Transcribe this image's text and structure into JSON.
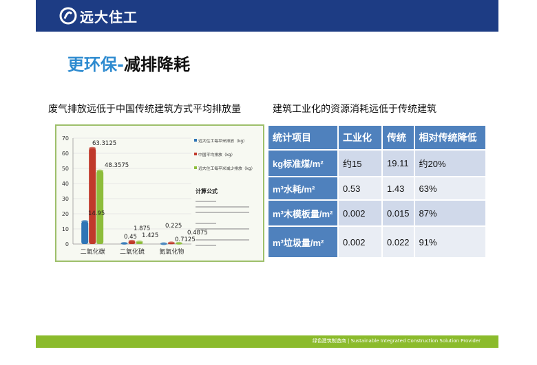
{
  "header": {
    "brand": "远大住工",
    "logo_icon": "yuanda-logo-icon",
    "bar_color": "#1d3c84"
  },
  "title": {
    "part1": "更环保-",
    "part2": "减排降耗"
  },
  "left_subtitle": "废气排放远低于中国传统建筑方式平均排放量",
  "right_subtitle": "建筑工业化的资源消耗远低于传统建筑",
  "chart_data": {
    "type": "bar",
    "categories": [
      "二氧化碳",
      "二氧化硫",
      "氮氧化物"
    ],
    "ylim": [
      0,
      70
    ],
    "yticks": [
      0,
      10,
      20,
      30,
      40,
      50,
      60,
      70
    ],
    "series": [
      {
        "name": "远大住工每平米排放（kg）",
        "color": "#2e75b6",
        "values": [
          14.95,
          0.45,
          0.225
        ]
      },
      {
        "name": "中国平均排放（kg）",
        "color": "#c0392b",
        "values": [
          63.3125,
          1.875,
          0.7125
        ]
      },
      {
        "name": "远大住工每平米减少排放（kg）",
        "color": "#8dbd3b",
        "values": [
          48.3575,
          1.425,
          0.4875
        ]
      }
    ],
    "data_labels": [
      "14.95",
      "63.3125",
      "48.3575",
      "0.45",
      "1.875",
      "1.425",
      "0.225",
      "0.7125",
      "0.4875"
    ],
    "formula_title": "计算公式"
  },
  "table": {
    "headers": [
      "统计项目",
      "工业化",
      "传统",
      "相对传统降低"
    ],
    "rows": [
      [
        "kg标准煤/m²",
        "约15",
        "19.11",
        "约20%"
      ],
      [
        "m³水耗/m²",
        "0.53",
        "1.43",
        "63%"
      ],
      [
        "m³木模板量/m²",
        "0.002",
        "0.015",
        "87%"
      ],
      [
        "m³垃圾量/m²",
        "0.002",
        "0.022",
        "91%"
      ]
    ]
  },
  "footer": {
    "text": "绿色建筑制造商 | Sustainable Integrated Construction Solution Provider",
    "color": "#8bbb2c"
  }
}
